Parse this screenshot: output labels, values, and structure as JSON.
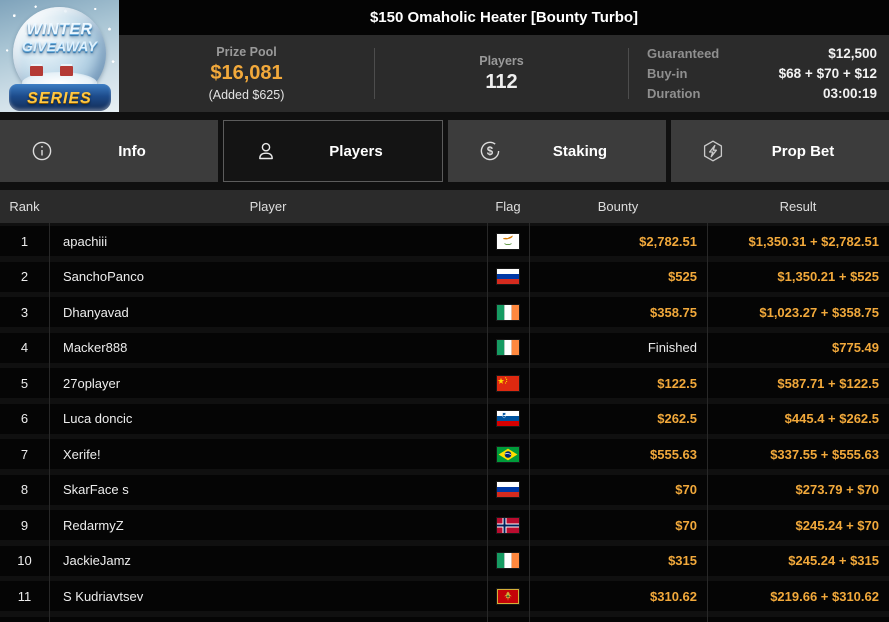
{
  "header": {
    "title": "$150 Omaholic Heater [Bounty Turbo]",
    "logo": {
      "line1": "WINTER",
      "line2": "GIVEAWAY",
      "series": "SERIES"
    },
    "prize_pool": {
      "label": "Prize Pool",
      "value": "$16,081",
      "added": "(Added $625)"
    },
    "players": {
      "label": "Players",
      "value": "112"
    },
    "details": [
      {
        "label": "Guaranteed",
        "value": "$12,500"
      },
      {
        "label": "Buy-in",
        "value": "$68 + $70 + $12"
      },
      {
        "label": "Duration",
        "value": "03:00:19"
      }
    ]
  },
  "tabs": [
    {
      "label": "Info",
      "icon": "info-icon",
      "active": false
    },
    {
      "label": "Players",
      "icon": "players-icon",
      "active": true
    },
    {
      "label": "Staking",
      "icon": "staking-icon",
      "active": false
    },
    {
      "label": "Prop Bet",
      "icon": "prop-bet-icon",
      "active": false
    }
  ],
  "table": {
    "columns": [
      "Rank",
      "Player",
      "Flag",
      "Bounty",
      "Result"
    ],
    "money_color": "#f2a93b",
    "rows": [
      {
        "rank": "1",
        "player": "apachiii",
        "flag": "cyprus",
        "bounty": "$2,782.51",
        "finished": false,
        "result": "$1,350.31 + $2,782.51"
      },
      {
        "rank": "2",
        "player": "SanchoPanco",
        "flag": "russia",
        "bounty": "$525",
        "finished": false,
        "result": "$1,350.21 + $525"
      },
      {
        "rank": "3",
        "player": "Dhanyavad",
        "flag": "ireland",
        "bounty": "$358.75",
        "finished": false,
        "result": "$1,023.27 + $358.75"
      },
      {
        "rank": "4",
        "player": "Macker888",
        "flag": "ireland",
        "bounty": "Finished",
        "finished": true,
        "result": "$775.49"
      },
      {
        "rank": "5",
        "player": "27oplayer",
        "flag": "china",
        "bounty": "$122.5",
        "finished": false,
        "result": "$587.71 + $122.5"
      },
      {
        "rank": "6",
        "player": "Luca doncic",
        "flag": "slovenia",
        "bounty": "$262.5",
        "finished": false,
        "result": "$445.4 + $262.5"
      },
      {
        "rank": "7",
        "player": "Xerife!",
        "flag": "brazil",
        "bounty": "$555.63",
        "finished": false,
        "result": "$337.55 + $555.63"
      },
      {
        "rank": "8",
        "player": "SkarFace s",
        "flag": "russia",
        "bounty": "$70",
        "finished": false,
        "result": "$273.79 + $70"
      },
      {
        "rank": "9",
        "player": "RedarmyZ",
        "flag": "norway",
        "bounty": "$70",
        "finished": false,
        "result": "$245.24 + $70"
      },
      {
        "rank": "10",
        "player": "JackieJamz",
        "flag": "ireland",
        "bounty": "$315",
        "finished": false,
        "result": "$245.24 + $315"
      },
      {
        "rank": "11",
        "player": "S Kudriavtsev",
        "flag": "montenegro",
        "bounty": "$310.62",
        "finished": false,
        "result": "$219.66 + $310.62"
      }
    ]
  }
}
